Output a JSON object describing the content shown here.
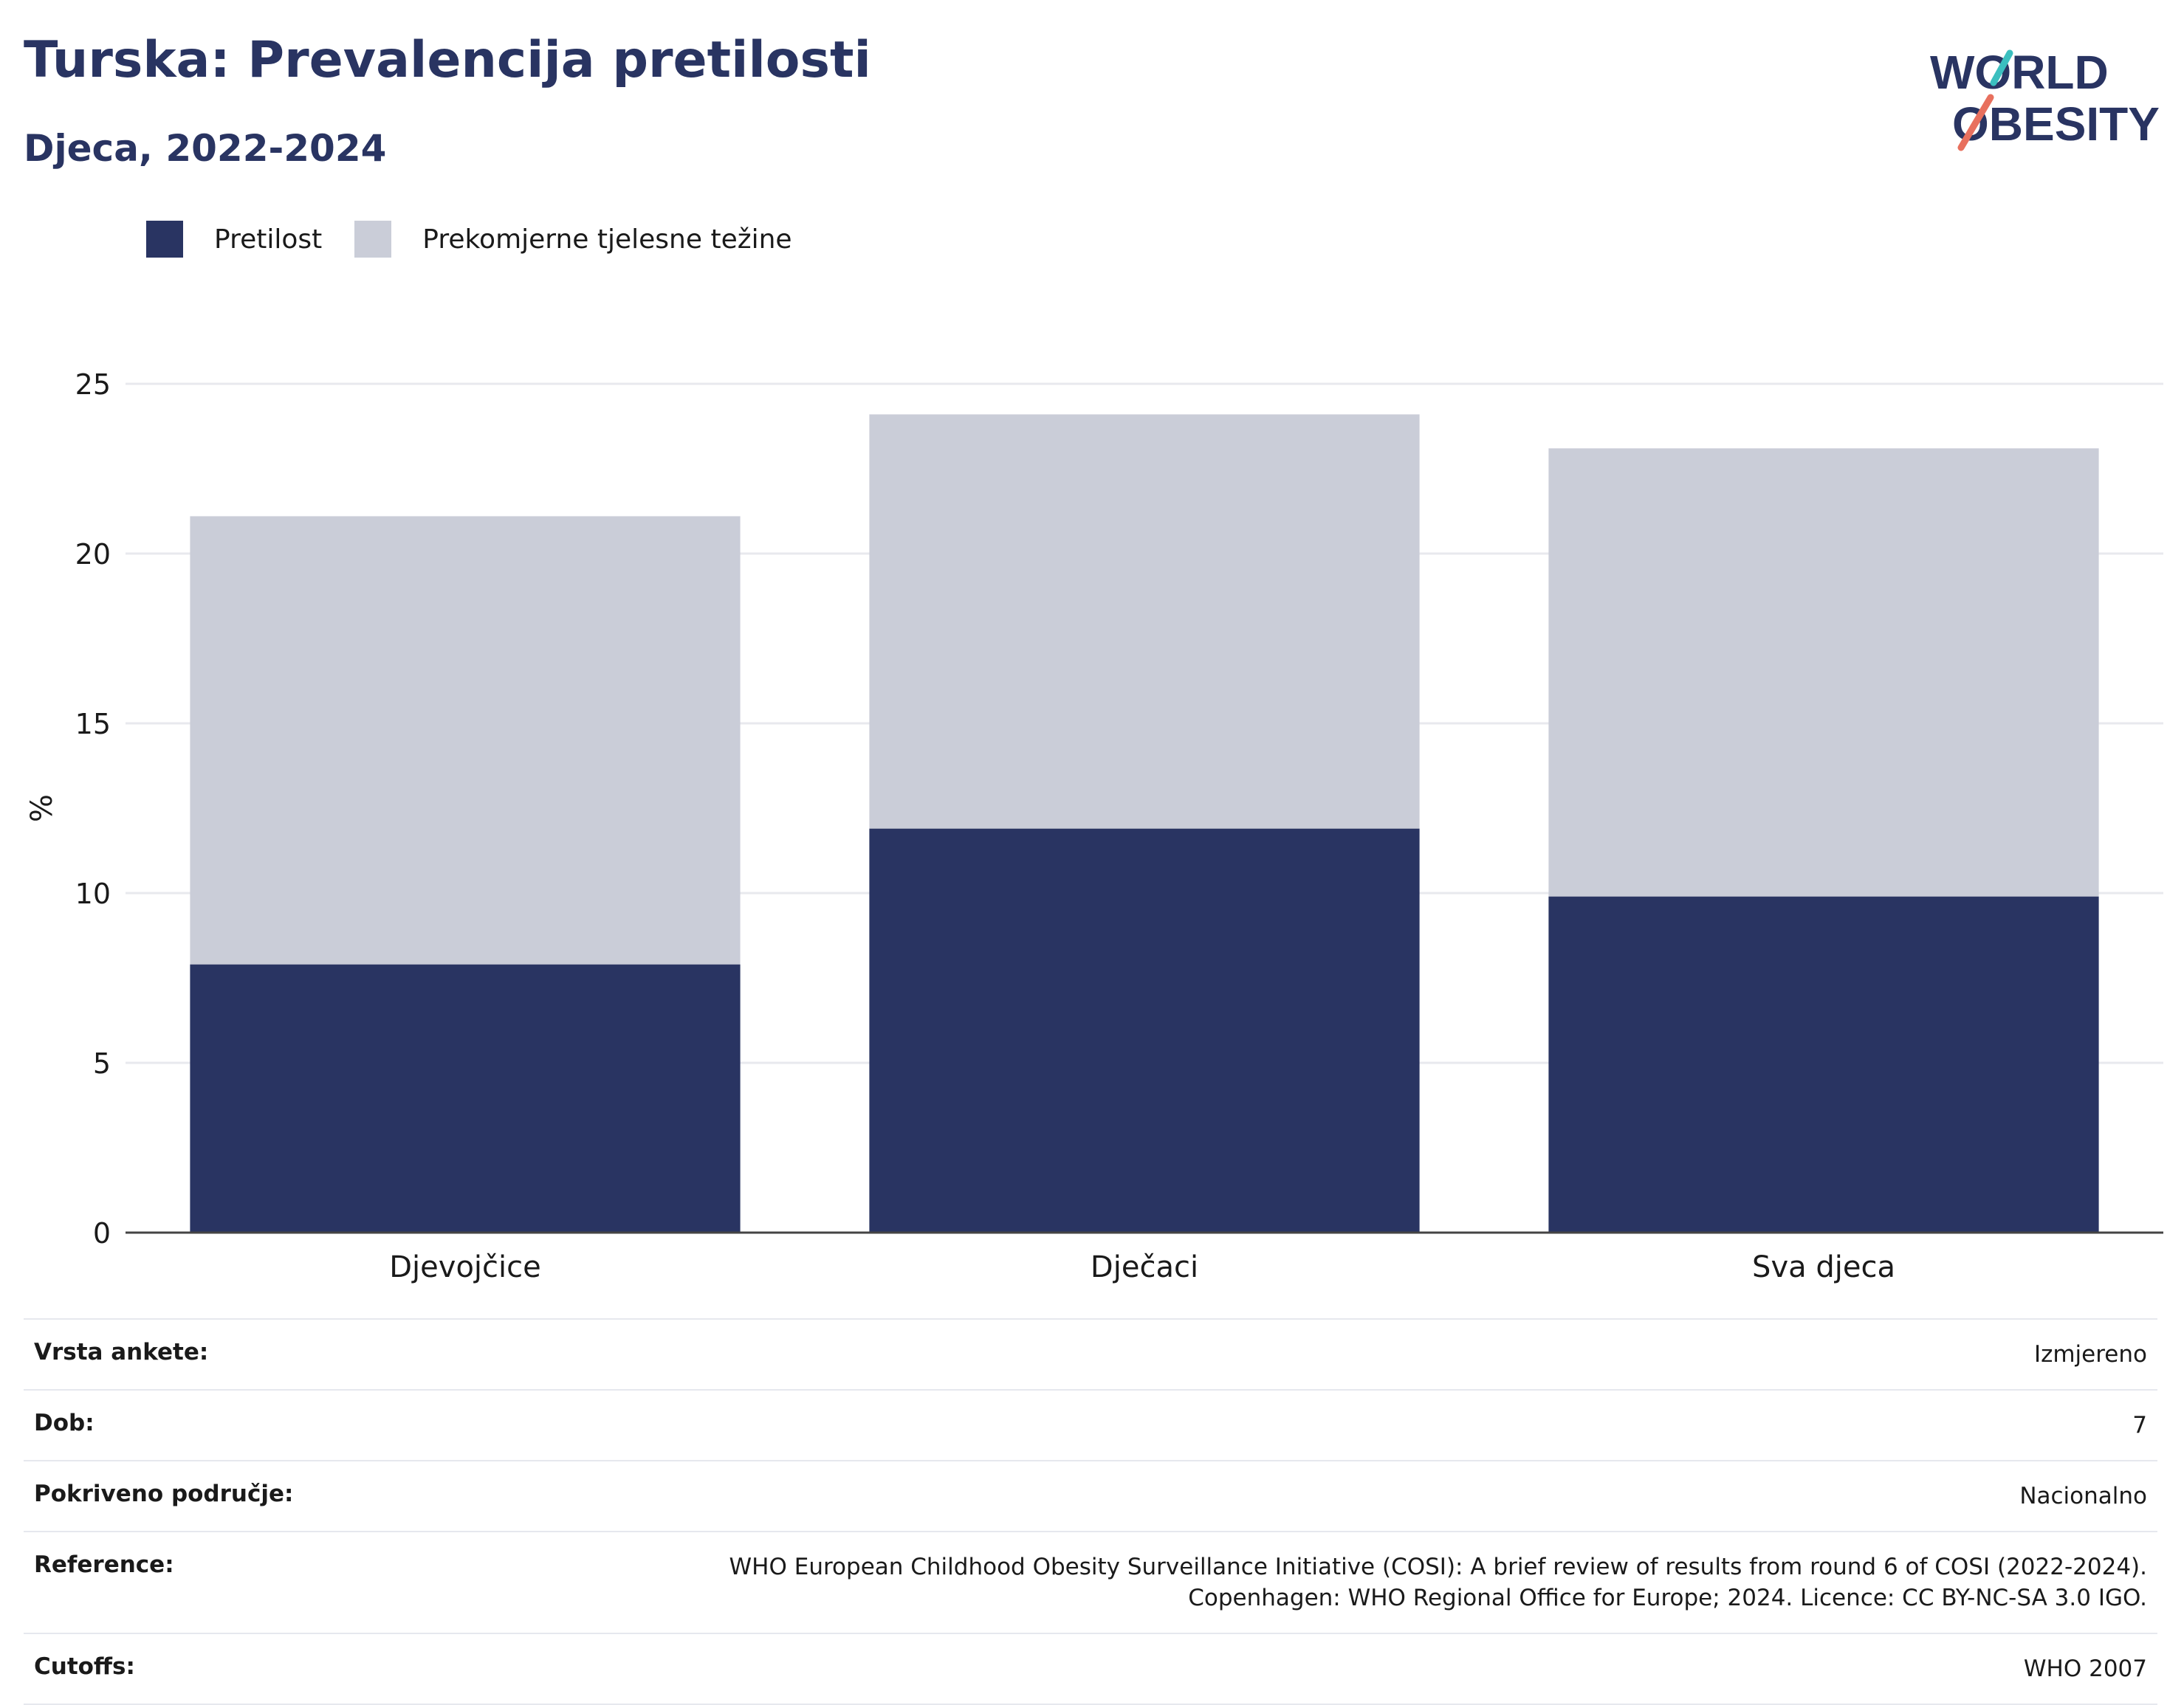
{
  "title": "Turska: Prevalencija pretilosti",
  "subtitle": "Djeca, 2022-2024",
  "logo": {
    "line1": "WORLD",
    "line2": "OBESITY"
  },
  "colors": {
    "obesity": "#293462",
    "overweight": "#cacdd8",
    "text": "#293462",
    "grid": "#e8e9ee",
    "logo_teal": "#3bbfbf",
    "logo_coral": "#e8705e"
  },
  "chart_data": {
    "type": "bar",
    "stacked": true,
    "categories": [
      "Djevojčice",
      "Dječaci",
      "Sva djeca"
    ],
    "series": [
      {
        "name": "Pretilost",
        "values": [
          7.9,
          11.9,
          9.9
        ]
      },
      {
        "name": "Prekomjerne tjelesne težine",
        "values": [
          13.2,
          12.2,
          13.2
        ]
      }
    ],
    "ylabel": "%",
    "xlabel": "",
    "ylim": [
      0,
      25
    ],
    "yticks": [
      0,
      5,
      10,
      15,
      20,
      25
    ],
    "grid": true,
    "legend": "top-left"
  },
  "info": [
    {
      "label": "Vrsta ankete:",
      "value": "Izmjereno"
    },
    {
      "label": "Dob:",
      "value": "7"
    },
    {
      "label": "Pokriveno područje:",
      "value": "Nacionalno"
    },
    {
      "label": "Reference:",
      "value": "WHO European Childhood Obesity Surveillance Initiative (COSI): A brief review of results from round 6 of COSI (2022-2024).",
      "value2": "Copenhagen: WHO Regional Office for Europe; 2024. Licence: CC BY-NC-SA 3.0 IGO."
    },
    {
      "label": "Cutoffs:",
      "value": "WHO 2007"
    }
  ]
}
